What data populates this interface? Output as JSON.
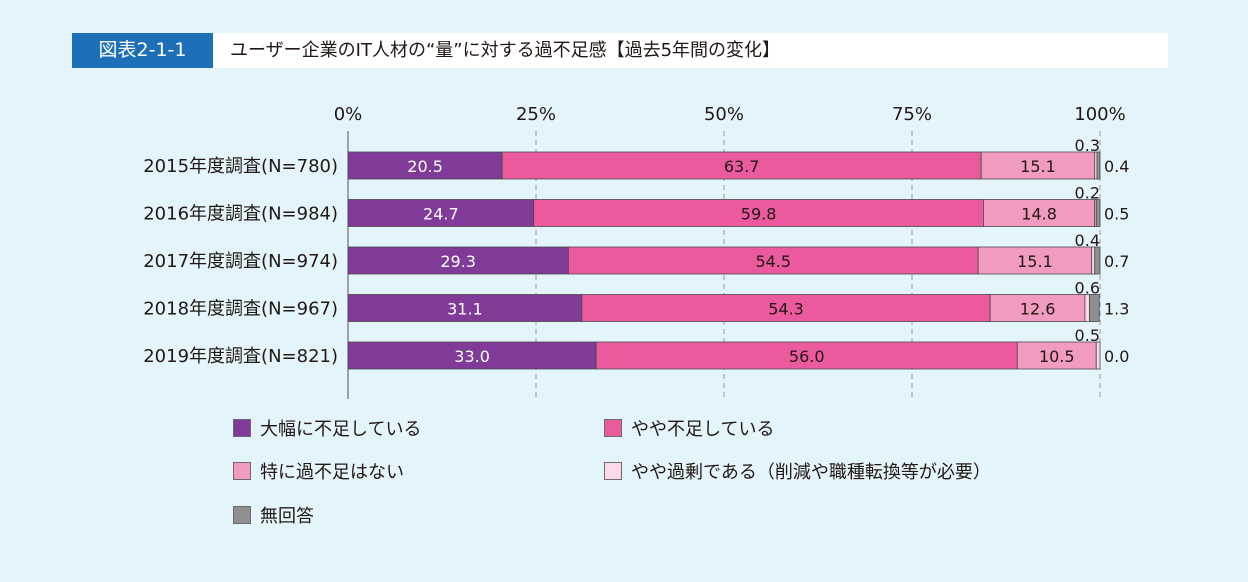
{
  "header": {
    "figure_number": "図表2-1-1",
    "title": "ユーザー企業のIT人材の“量”に対する過不足感【過去5年間の変化】"
  },
  "colors": {
    "background": "#e4f4fb",
    "tag": "#1d70b7",
    "severe_shortage": "#7f3b97",
    "some_shortage": "#ea5a9c",
    "adequate": "#f29bc1",
    "excess": "#fbd9e8",
    "no_answer": "#8f8f8f"
  },
  "chart_data": {
    "type": "bar",
    "orientation": "horizontal",
    "stacked": true,
    "percent": true,
    "categories": [
      "2015年度調査(N=780)",
      "2016年度調査(N=984)",
      "2017年度調査(N=974)",
      "2018年度調査(N=967)",
      "2019年度調査(N=821)"
    ],
    "series": [
      {
        "name": "大幅に不足している",
        "color": "#7f3b97",
        "values": [
          20.5,
          24.7,
          29.3,
          31.1,
          33.0
        ],
        "labels": [
          "20.5",
          "24.7",
          "29.3",
          "31.1",
          "33.0"
        ]
      },
      {
        "name": "やや不足している",
        "color": "#ea5a9c",
        "values": [
          63.7,
          59.8,
          54.5,
          54.3,
          56.0
        ],
        "labels": [
          "63.7",
          "59.8",
          "54.5",
          "54.3",
          "56.0"
        ]
      },
      {
        "name": "特に過不足はない",
        "color": "#f29bc1",
        "values": [
          15.1,
          14.8,
          15.1,
          12.6,
          10.5
        ],
        "labels": [
          "15.1",
          "14.8",
          "15.1",
          "12.6",
          "10.5"
        ]
      },
      {
        "name": "やや過剰である（削減や職種転換等が必要）",
        "color": "#fbd9e8",
        "values": [
          0.3,
          0.2,
          0.4,
          0.6,
          0.5
        ],
        "labels": [
          "0.3",
          "0.2",
          "0.4",
          "0.6",
          "0.5"
        ]
      },
      {
        "name": "無回答",
        "color": "#8f8f8f",
        "values": [
          0.4,
          0.5,
          0.7,
          1.3,
          0.0
        ],
        "labels": [
          "0.4",
          "0.5",
          "0.7",
          "1.3",
          "0.0"
        ]
      }
    ],
    "xlim": [
      0,
      100
    ],
    "x_ticks": [
      "0%",
      "25%",
      "50%",
      "75%",
      "100%"
    ],
    "grid": true,
    "legend_position": "bottom"
  }
}
